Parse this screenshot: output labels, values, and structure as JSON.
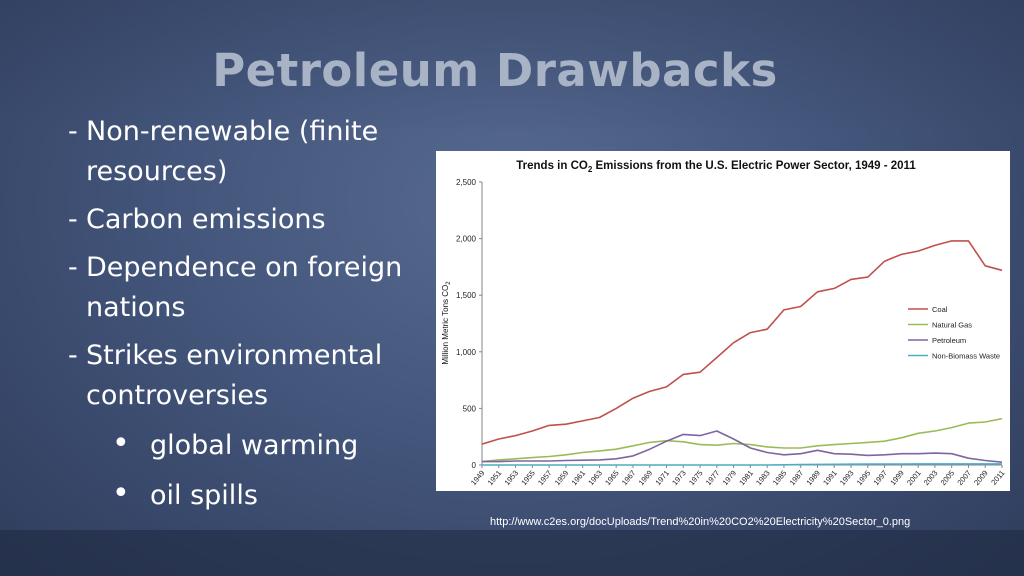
{
  "slide": {
    "title": "Petroleum Drawbacks",
    "bullets": [
      {
        "dash": "-",
        "text": "Non-renewable (finite resources)"
      },
      {
        "dash": "-",
        "text": "Carbon emissions"
      },
      {
        "dash": "-",
        "text": "Dependence on foreign nations"
      },
      {
        "dash": "-",
        "text": "Strikes environmental controversies"
      }
    ],
    "sub_bullets": [
      {
        "dot": "•",
        "text": "global warming"
      },
      {
        "dot": "•",
        "text": "oil spills"
      }
    ],
    "source": "http://www.c2es.org/docUploads/Trend%20in%20CO2%20Electricity%20Sector_0.png"
  },
  "chart_data": {
    "type": "line",
    "title_parts": [
      "Trends in CO",
      "2",
      " Emissions from the U.S. Electric Power Sector, 1949 - 2011"
    ],
    "ylabel_parts": [
      "Million Metric Tons CO",
      "2"
    ],
    "xlabel": "",
    "xlim": [
      1949,
      2011
    ],
    "ylim": [
      0,
      2500
    ],
    "y_ticks": [
      0,
      500,
      1000,
      1500,
      2000,
      2500
    ],
    "y_tick_labels": [
      "0",
      "500",
      "1,000",
      "1,500",
      "2,000",
      "2,500"
    ],
    "x_ticks": [
      1949,
      1951,
      1953,
      1955,
      1957,
      1959,
      1961,
      1963,
      1965,
      1967,
      1969,
      1971,
      1973,
      1975,
      1977,
      1979,
      1981,
      1983,
      1985,
      1987,
      1989,
      1991,
      1993,
      1995,
      1997,
      1999,
      2001,
      2003,
      2005,
      2007,
      2009,
      2011
    ],
    "grid": false,
    "legend_position": "right",
    "x": [
      1949,
      1951,
      1953,
      1955,
      1957,
      1959,
      1961,
      1963,
      1965,
      1967,
      1969,
      1971,
      1973,
      1975,
      1977,
      1979,
      1981,
      1983,
      1985,
      1987,
      1989,
      1991,
      1993,
      1995,
      1997,
      1999,
      2001,
      2003,
      2005,
      2007,
      2009,
      2011
    ],
    "series": [
      {
        "name": "Coal",
        "color": "#c0504d",
        "values": [
          185,
          230,
          260,
          300,
          350,
          360,
          390,
          420,
          500,
          590,
          650,
          690,
          800,
          820,
          950,
          1080,
          1170,
          1200,
          1370,
          1400,
          1530,
          1560,
          1640,
          1660,
          1800,
          1860,
          1890,
          1940,
          1980,
          1980,
          1760,
          1720
        ]
      },
      {
        "name": "Natural Gas",
        "color": "#9bbb59",
        "values": [
          30,
          45,
          55,
          65,
          75,
          90,
          110,
          125,
          140,
          170,
          200,
          215,
          205,
          180,
          175,
          190,
          180,
          160,
          150,
          150,
          170,
          180,
          190,
          200,
          210,
          240,
          280,
          300,
          330,
          370,
          380,
          410
        ]
      },
      {
        "name": "Petroleum",
        "color": "#8064a2",
        "values": [
          30,
          30,
          35,
          35,
          35,
          40,
          42,
          45,
          55,
          80,
          140,
          210,
          270,
          260,
          300,
          230,
          150,
          110,
          90,
          100,
          130,
          100,
          95,
          85,
          90,
          100,
          100,
          105,
          100,
          60,
          40,
          25
        ]
      },
      {
        "name": "Non-Biomass Waste",
        "color": "#4bacc6",
        "values": [
          0,
          0,
          0,
          0,
          0,
          0,
          0,
          0,
          0,
          0,
          0,
          0,
          0,
          0,
          0,
          0,
          0,
          0,
          2,
          4,
          5,
          6,
          7,
          8,
          9,
          9,
          10,
          10,
          10,
          10,
          10,
          10
        ]
      }
    ]
  }
}
